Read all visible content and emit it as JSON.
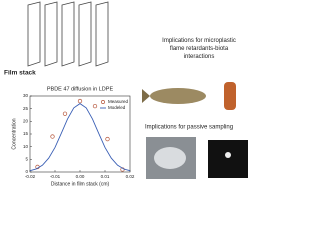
{
  "header": {
    "film_label": "Film stack"
  },
  "right": {
    "heading_1": "Implications for microplastic flame retardants-biota interactions",
    "heading_2": "Implications for passive sampling"
  },
  "chart_data": {
    "type": "line",
    "title": "PBDE 47 diffusion in LDPE",
    "x_label": "Distance in film stack (cm)",
    "y_label": "Concentration",
    "xlim": [
      -0.02,
      0.02
    ],
    "ylim": [
      0,
      30
    ],
    "xticks": [
      {
        "value": -0.02,
        "label": "-0.02"
      },
      {
        "value": -0.01,
        "label": "-0.01"
      },
      {
        "value": 0,
        "label": "0.00"
      },
      {
        "value": 0.01,
        "label": "0.01"
      },
      {
        "value": 0.02,
        "label": "0.02"
      }
    ],
    "yticks": [
      0,
      5,
      10,
      15,
      20,
      25,
      30
    ],
    "legend": "upper right",
    "series": [
      {
        "name": "Measured",
        "color": "#b5553a",
        "marker": "circle",
        "x": [
          -0.017,
          -0.011,
          -0.006,
          0,
          0.006,
          0.011,
          0.017
        ],
        "values": [
          2,
          14,
          23,
          28,
          26,
          13,
          1
        ]
      },
      {
        "name": "Modeled",
        "color": "#3a5fb5",
        "marker": "none",
        "x": [
          -0.02,
          -0.0175,
          -0.015,
          -0.0125,
          -0.01,
          -0.0075,
          -0.005,
          -0.0025,
          0,
          0.0025,
          0.005,
          0.0075,
          0.01,
          0.0125,
          0.015,
          0.0175,
          0.02
        ],
        "values": [
          0.5,
          1.2,
          2.7,
          5.5,
          9.7,
          15.2,
          20.9,
          25.3,
          27,
          25.3,
          20.9,
          15.2,
          9.7,
          5.5,
          2.7,
          1.2,
          0.5
        ]
      }
    ]
  }
}
